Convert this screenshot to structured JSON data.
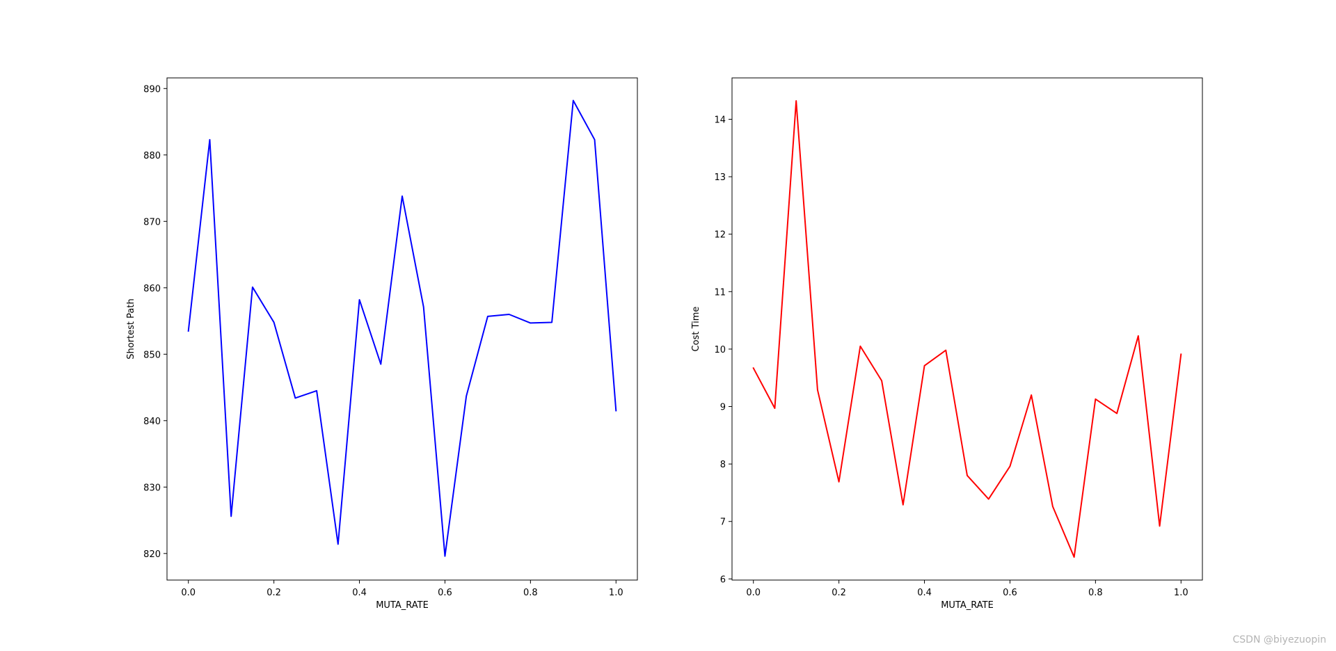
{
  "chart_data": [
    {
      "type": "line",
      "xlabel": "MUTA_RATE",
      "ylabel": "Shortest Path",
      "xlim": [
        -0.05,
        1.05
      ],
      "ylim": [
        816,
        891.6
      ],
      "xticks": [
        0.0,
        0.2,
        0.4,
        0.6,
        0.8,
        1.0
      ],
      "xtick_labels": [
        "0.0",
        "0.2",
        "0.4",
        "0.6",
        "0.8",
        "1.0"
      ],
      "yticks": [
        820,
        830,
        840,
        850,
        860,
        870,
        880,
        890
      ],
      "ytick_labels": [
        "820",
        "830",
        "840",
        "850",
        "860",
        "870",
        "880",
        "890"
      ],
      "grid": false,
      "series": [
        {
          "color": "#0000ff",
          "x": [
            0.0,
            0.05,
            0.1,
            0.15,
            0.2,
            0.25,
            0.3,
            0.35,
            0.4,
            0.45,
            0.5,
            0.55,
            0.6,
            0.65,
            0.7,
            0.75,
            0.8,
            0.85,
            0.9,
            0.95,
            1.0
          ],
          "values": [
            853.5,
            882.3,
            825.6,
            860.1,
            854.8,
            843.4,
            844.5,
            821.4,
            858.2,
            848.5,
            873.8,
            857.1,
            819.6,
            843.7,
            855.7,
            856.0,
            854.7,
            854.8,
            888.2,
            882.3,
            841.5
          ]
        }
      ]
    },
    {
      "type": "line",
      "xlabel": "MUTA_RATE",
      "ylabel": "Cost Time",
      "xlim": [
        -0.05,
        1.05
      ],
      "ylim": [
        5.98,
        14.72
      ],
      "xticks": [
        0.0,
        0.2,
        0.4,
        0.6,
        0.8,
        1.0
      ],
      "xtick_labels": [
        "0.0",
        "0.2",
        "0.4",
        "0.6",
        "0.8",
        "1.0"
      ],
      "yticks": [
        6,
        7,
        8,
        9,
        10,
        11,
        12,
        13,
        14
      ],
      "ytick_labels": [
        "6",
        "7",
        "8",
        "9",
        "10",
        "11",
        "12",
        "13",
        "14"
      ],
      "grid": false,
      "series": [
        {
          "color": "#ff0000",
          "x": [
            0.0,
            0.05,
            0.1,
            0.15,
            0.2,
            0.25,
            0.3,
            0.35,
            0.4,
            0.45,
            0.5,
            0.55,
            0.6,
            0.65,
            0.7,
            0.75,
            0.8,
            0.85,
            0.9,
            0.95,
            1.0
          ],
          "values": [
            9.67,
            8.97,
            14.32,
            9.29,
            7.69,
            10.05,
            9.45,
            7.29,
            9.71,
            9.98,
            7.8,
            7.39,
            7.96,
            9.2,
            7.26,
            6.38,
            9.13,
            8.88,
            10.23,
            6.92,
            9.91
          ]
        }
      ]
    }
  ],
  "watermark": "CSDN @biyezuopin"
}
